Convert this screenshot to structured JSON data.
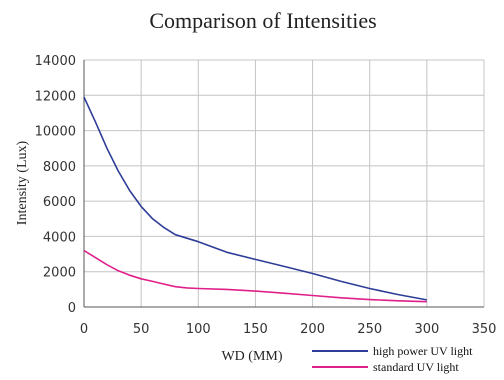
{
  "chart_data": {
    "type": "line",
    "title": "Comparison of Intensities",
    "xlabel": "WD (MM)",
    "ylabel": "Intensity (Lux)",
    "xlim": [
      0,
      350
    ],
    "ylim": [
      0,
      14000
    ],
    "xticks": [
      0,
      50,
      100,
      150,
      200,
      250,
      300,
      350
    ],
    "yticks": [
      0,
      2000,
      4000,
      6000,
      8000,
      10000,
      12000,
      14000
    ],
    "grid": true,
    "legend_position": "bottom-right",
    "series": [
      {
        "name": "high power UV light",
        "color": "#2e3d97",
        "x": [
          0,
          10,
          20,
          30,
          40,
          50,
          60,
          70,
          80,
          90,
          100,
          125,
          150,
          175,
          200,
          225,
          250,
          275,
          300
        ],
        "y": [
          11900,
          10500,
          9000,
          7700,
          6600,
          5700,
          5000,
          4500,
          4100,
          3900,
          3700,
          3100,
          2700,
          2300,
          1900,
          1450,
          1050,
          700,
          400
        ]
      },
      {
        "name": "standard UV light",
        "color": "#e0208a",
        "x": [
          0,
          10,
          20,
          30,
          40,
          50,
          60,
          70,
          80,
          90,
          100,
          125,
          150,
          175,
          200,
          225,
          250,
          275,
          300
        ],
        "y": [
          3200,
          2800,
          2400,
          2050,
          1800,
          1600,
          1450,
          1300,
          1150,
          1080,
          1050,
          1000,
          900,
          780,
          650,
          520,
          420,
          350,
          300
        ]
      }
    ]
  }
}
